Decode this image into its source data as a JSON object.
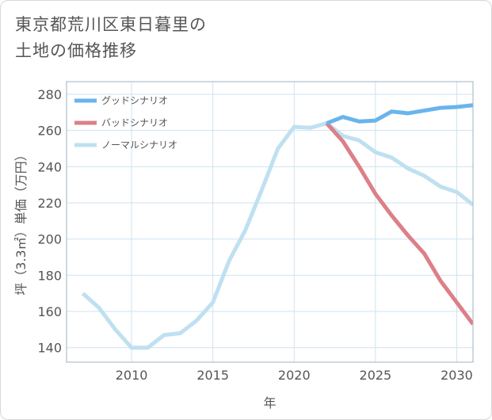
{
  "title_line1": "東京都荒川区東日暮里の",
  "title_line2": "土地の価格推移",
  "colors": {
    "good": "#6ab4ec",
    "bad": "#dc8088",
    "normal": "#bfe0f0",
    "grid": "#cde3f0",
    "frame": "#9fb3c2",
    "text": "#555555"
  },
  "chart_data": {
    "type": "line",
    "title": "東京都荒川区東日暮里の土地の価格推移",
    "xlabel": "年",
    "ylabel": "坪（3.3㎡）単価（万円）",
    "xlim": [
      2006,
      2031
    ],
    "ylim": [
      132,
      287
    ],
    "xticks": [
      2010,
      2015,
      2020,
      2025,
      2030
    ],
    "yticks": [
      140,
      160,
      180,
      200,
      220,
      240,
      260,
      280
    ],
    "legend_position": "top-left",
    "grid": true,
    "series": [
      {
        "name": "グッドシナリオ",
        "color": "#6ab4ec",
        "width": 5,
        "x": [
          2022,
          2023,
          2024,
          2025,
          2026,
          2027,
          2028,
          2029,
          2030,
          2031
        ],
        "y": [
          264,
          267.5,
          265,
          265.5,
          270.5,
          269.5,
          271,
          272.5,
          273,
          274
        ]
      },
      {
        "name": "バッドシナリオ",
        "color": "#dc8088",
        "width": 5,
        "x": [
          2022,
          2023,
          2024,
          2025,
          2026,
          2027,
          2028,
          2029,
          2030,
          2031
        ],
        "y": [
          264,
          254,
          240,
          225,
          213,
          202,
          192,
          177,
          165,
          153
        ]
      },
      {
        "name": "ノーマルシナリオ",
        "color": "#bfe0f0",
        "width": 5,
        "x": [
          2007,
          2008,
          2009,
          2010,
          2011,
          2012,
          2013,
          2014,
          2015,
          2016,
          2017,
          2018,
          2019,
          2020,
          2021,
          2022,
          2023,
          2024,
          2025,
          2026,
          2027,
          2028,
          2029,
          2030,
          2031
        ],
        "y": [
          170,
          162,
          150,
          140,
          140,
          147,
          148,
          155,
          165,
          188,
          205,
          227,
          250,
          262,
          261.5,
          264,
          257,
          254.5,
          248,
          245,
          239,
          235,
          229,
          226,
          219
        ]
      }
    ]
  }
}
